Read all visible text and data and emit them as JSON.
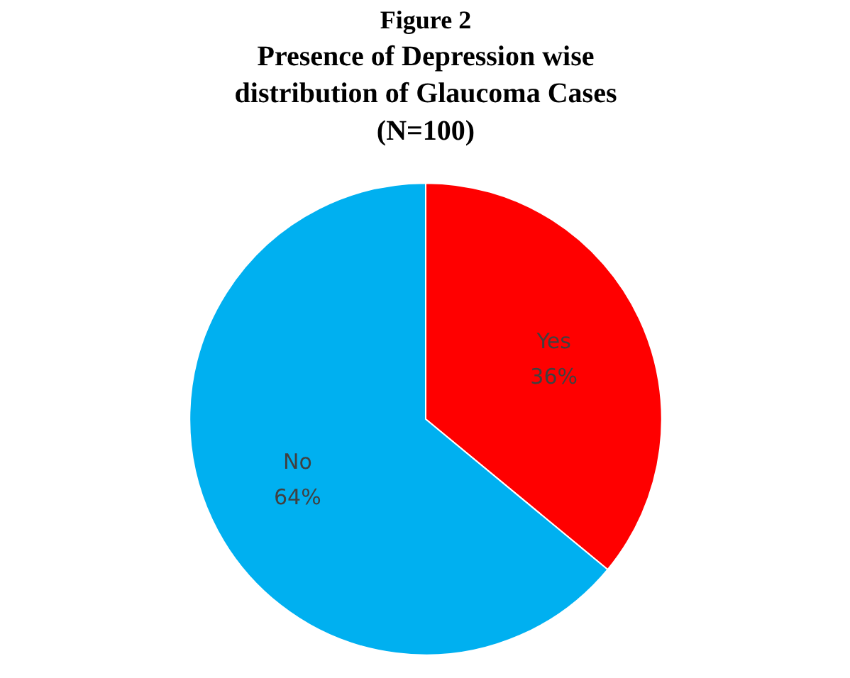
{
  "chart_data": {
    "type": "pie",
    "title": "Presence of Depression wise\ndistribution of Glaucoma Cases\n(N=100)",
    "annotations": [
      "Figure 2"
    ],
    "categories": [
      "Yes",
      "No"
    ],
    "values": [
      36,
      64
    ],
    "colors": [
      "#ff0000",
      "#00b0f0"
    ],
    "value_labels": [
      "36%",
      "64%"
    ],
    "legend": false
  }
}
